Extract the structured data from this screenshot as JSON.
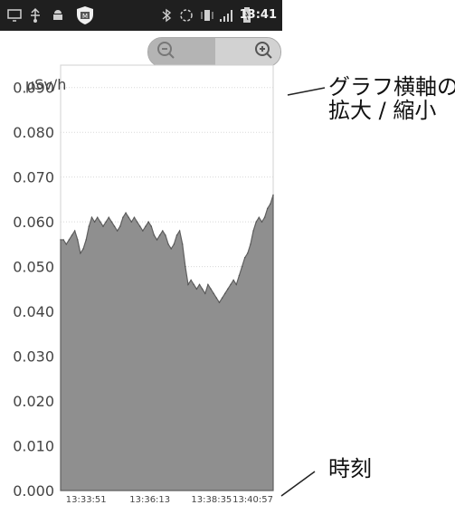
{
  "status_bar": {
    "time": "13:41",
    "icons": [
      "monitor-icon",
      "usb-icon",
      "android-icon",
      "shield-app-icon",
      "bluetooth-icon",
      "sync-icon",
      "vibrate-icon",
      "signal-icon",
      "battery-icon"
    ]
  },
  "zoom_control": {
    "zoom_out_icon": "zoom-out-icon",
    "zoom_in_icon": "zoom-in-icon"
  },
  "annotations": {
    "axis_zoom_line1": "グラフ横軸の",
    "axis_zoom_line2": "拡大 / 縮小",
    "time_label": "時刻"
  },
  "colors": {
    "background": "#ffffff",
    "status_bar": "#1f1f1f",
    "area_fill": "#8f8f8f",
    "grid": "#d8d8d8",
    "text": "#555555"
  },
  "chart_data": {
    "type": "area",
    "ylabel": "μSv/h",
    "ylim": [
      0,
      0.095
    ],
    "y_ticks": [
      "0.000",
      "0.010",
      "0.020",
      "0.030",
      "0.040",
      "0.050",
      "0.060",
      "0.070",
      "0.080",
      "0.090"
    ],
    "x_ticks": [
      "13:33:51",
      "13:36:13",
      "13:38:35",
      "13:40:57"
    ],
    "x_ticks_fraction": [
      0.12,
      0.42,
      0.71,
      1.0
    ],
    "grid": true,
    "series": [
      {
        "values": [
          0.056,
          0.056,
          0.055,
          0.056,
          0.057,
          0.058,
          0.056,
          0.053,
          0.054,
          0.056,
          0.059,
          0.061,
          0.06,
          0.061,
          0.06,
          0.059,
          0.06,
          0.061,
          0.06,
          0.059,
          0.058,
          0.059,
          0.061,
          0.062,
          0.061,
          0.06,
          0.061,
          0.06,
          0.059,
          0.058,
          0.059,
          0.06,
          0.059,
          0.057,
          0.056,
          0.057,
          0.058,
          0.057,
          0.055,
          0.054,
          0.055,
          0.057,
          0.058,
          0.055,
          0.05,
          0.046,
          0.047,
          0.046,
          0.045,
          0.046,
          0.045,
          0.044,
          0.046,
          0.045,
          0.044,
          0.043,
          0.042,
          0.043,
          0.044,
          0.045,
          0.046,
          0.047,
          0.046,
          0.048,
          0.05,
          0.052,
          0.053,
          0.055,
          0.058,
          0.06,
          0.061,
          0.06,
          0.061,
          0.063,
          0.064,
          0.066
        ]
      }
    ]
  }
}
